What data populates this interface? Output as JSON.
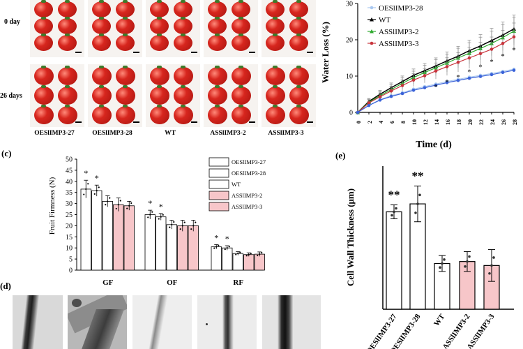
{
  "panel_labels": {
    "c": "(c)",
    "d": "(d)",
    "e": "(e)"
  },
  "photo_panel": {
    "row_labels": [
      "0 day",
      "26 days"
    ],
    "genotypes": [
      "OESlIMP3-27",
      "OESlIMP3-28",
      "WT",
      "ASSlIMP3-2",
      "ASSlIMP3-3"
    ]
  },
  "colors": {
    "white_bar": "#ffffff",
    "pink_bar": "#f7c6c9",
    "oe28_series": "#a9c8f0",
    "wt_series": "#000000",
    "as2_series": "#2eaa2e",
    "as3_series": "#c8343c",
    "blue_series": "#3a62d8",
    "tomato": "#d7261e",
    "stem": "#3e7a2a"
  },
  "chart_data": [
    {
      "type": "line",
      "ylabel": "Water Loss (%)",
      "xlabel": "Time (d)",
      "x": [
        0,
        2,
        4,
        6,
        8,
        10,
        12,
        14,
        16,
        18,
        20,
        22,
        24,
        26,
        28
      ],
      "xlim": [
        0,
        28
      ],
      "ylim": [
        0,
        30
      ],
      "yticks": [
        0,
        10,
        20,
        30
      ],
      "legend_position": "top-left",
      "series": [
        {
          "name": "OESlIMP3-28",
          "marker": "circle",
          "color": "#a9c8f0",
          "values": [
            0,
            2.0,
            3.5,
            4.6,
            5.4,
            6.4,
            7.1,
            7.8,
            8.5,
            9.1,
            9.7,
            10.2,
            10.7,
            11.3,
            11.9
          ]
        },
        {
          "name": "WT",
          "marker": "triangle",
          "color": "#000000",
          "values": [
            0,
            3.0,
            5.0,
            6.8,
            8.5,
            10.2,
            11.5,
            12.8,
            14.2,
            15.5,
            17.0,
            18.3,
            19.8,
            21.3,
            23.0
          ]
        },
        {
          "name": "ASSlIMP3-2",
          "marker": "triangle",
          "color": "#2eaa2e",
          "values": [
            0,
            2.8,
            4.6,
            6.3,
            8.0,
            9.6,
            11.0,
            12.3,
            13.6,
            15.0,
            16.3,
            17.6,
            19.0,
            20.6,
            22.4
          ]
        },
        {
          "name": "ASSlIMP3-3",
          "marker": "circle",
          "color": "#c8343c",
          "values": [
            0,
            2.6,
            4.3,
            5.9,
            7.4,
            8.9,
            10.1,
            11.4,
            12.6,
            13.8,
            15.0,
            16.2,
            17.4,
            19.0,
            20.8
          ]
        },
        {
          "name": "",
          "marker": "circle",
          "color": "#3a62d8",
          "values": [
            0,
            1.9,
            3.4,
            4.4,
            5.2,
            6.1,
            6.8,
            7.5,
            8.2,
            8.8,
            9.4,
            9.9,
            10.4,
            11.0,
            11.6
          ]
        }
      ],
      "significance_marks": "*"
    },
    {
      "type": "bar",
      "ylabel": "Fruit Firmness (N)",
      "categories": [
        "GF",
        "OF",
        "RF"
      ],
      "ylim": [
        0,
        50
      ],
      "yticks": [
        0,
        5,
        10,
        15,
        20,
        25,
        30,
        35,
        40,
        45,
        50
      ],
      "legend_position": "top-right",
      "series": [
        {
          "name": "OESlIMP3-27",
          "color": "#ffffff",
          "values": [
            36.5,
            25.0,
            10.5
          ]
        },
        {
          "name": "OESlIMP3-28",
          "color": "#ffffff",
          "values": [
            35.8,
            24.0,
            10.0
          ]
        },
        {
          "name": "WT",
          "color": "#ffffff",
          "values": [
            31.0,
            20.5,
            7.5
          ]
        },
        {
          "name": "ASSlIMP3-2",
          "color": "#f7c6c9",
          "values": [
            29.5,
            20.0,
            7.0
          ]
        },
        {
          "name": "ASSlIMP3-3",
          "color": "#f7c6c9",
          "values": [
            29.0,
            20.0,
            7.2
          ]
        }
      ],
      "significance_marks": "*"
    },
    {
      "type": "bar",
      "ylabel": "Cell Wall Thickness (μm)",
      "categories": [
        "OESlIMP3-27",
        "OESlIMP3-28",
        "WT",
        "ASSlIMP3-2",
        "ASSlIMP3-3"
      ],
      "values": [
        4.9,
        5.3,
        2.3,
        2.4,
        2.2
      ],
      "errors": [
        0.35,
        0.9,
        0.4,
        0.5,
        0.8
      ],
      "colors": [
        "#ffffff",
        "#ffffff",
        "#ffffff",
        "#f7c6c9",
        "#f7c6c9"
      ],
      "annotations": [
        "**",
        "**",
        "",
        "",
        ""
      ],
      "ylim": [
        0,
        7.2
      ]
    }
  ]
}
